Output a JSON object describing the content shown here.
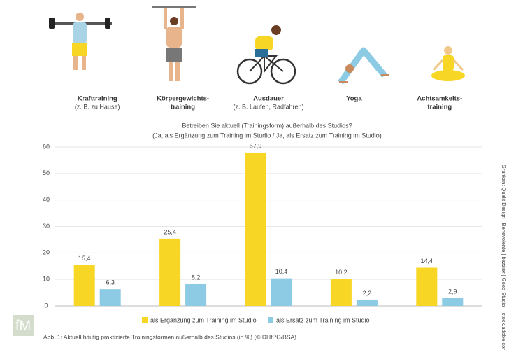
{
  "chart_data": {
    "type": "bar",
    "title": "Betreiben Sie aktuell (Trainingsform) außerhalb des Studios?",
    "subtitle": "(Ja, als Ergänzung zum Training im Studio / Ja, als Ersatz zum Training im Studio)",
    "categories": [
      [
        "Krafttraining"
      ],
      [
        "Körpergewichts-",
        "training"
      ],
      [
        "Ausdauer"
      ],
      [
        "Yoga"
      ],
      [
        "Achtsamkeits-",
        "training"
      ]
    ],
    "category_notes": [
      "(z. B. zu Hause)",
      "",
      "(z. B. Laufen, Radfahren)",
      "",
      ""
    ],
    "series": [
      {
        "name": "als Ergänzung zum Training im Studio",
        "color": "#f8d626",
        "values": [
          15.4,
          25.4,
          57.9,
          10.2,
          14.4
        ],
        "value_labels": [
          "15,4",
          "25,4",
          "57,9",
          "10,2",
          "14,4"
        ]
      },
      {
        "name": "als Ersatz zum Training im Studio",
        "color": "#8ccbe3",
        "values": [
          6.3,
          8.2,
          10.4,
          2.2,
          2.9
        ],
        "value_labels": [
          "6,3",
          "8,2",
          "10,4",
          "2,2",
          "2,9"
        ]
      }
    ],
    "ylim": [
      0,
      60
    ],
    "yticks": [
      0,
      10,
      20,
      30,
      40,
      50,
      60
    ],
    "grid": true,
    "legend": "bottom",
    "caption": "Abb. 1: Aktuell häufig praktizierte Trainingsformen außerhalb des Studios (in %) (© DHfPG/BSA)",
    "credit": "Grafiken: Qualit Design | Benevolente | bazzier | Good Studio – stock.adobe.com",
    "logo": "fM"
  }
}
